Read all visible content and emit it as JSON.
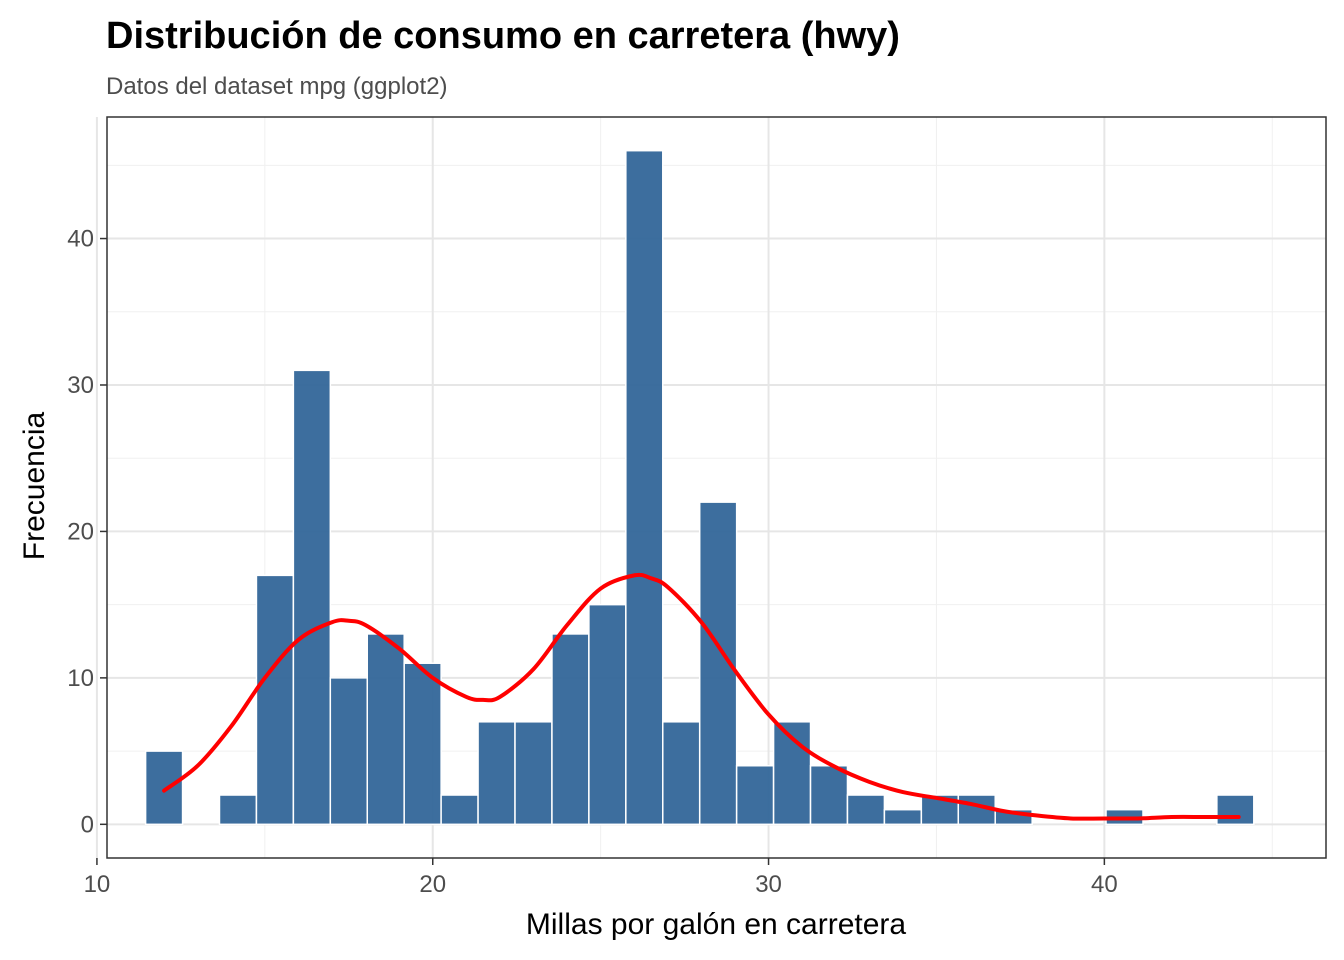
{
  "chart_data": {
    "type": "bar",
    "title": "Distribución de consumo en carretera (hwy)",
    "subtitle": "Datos del dataset mpg (ggplot2)",
    "xlabel": "Millas por galón en carretera",
    "ylabel": "Frecuencia",
    "xlim": [
      10.3,
      46.6
    ],
    "ylim": [
      -2.3,
      48.3
    ],
    "x_ticks": [
      10,
      20,
      30,
      40
    ],
    "y_ticks": [
      0,
      10,
      20,
      30,
      40
    ],
    "x_tick_labels": [
      "10",
      "20",
      "30",
      "40"
    ],
    "y_tick_labels": [
      "0",
      "10",
      "20",
      "30",
      "40"
    ],
    "grid": true,
    "bin_width": 1.1,
    "bins": [
      {
        "x": 12.0,
        "count": 5
      },
      {
        "x": 13.1,
        "count": 0
      },
      {
        "x": 14.2,
        "count": 2
      },
      {
        "x": 15.3,
        "count": 17
      },
      {
        "x": 16.4,
        "count": 31
      },
      {
        "x": 17.5,
        "count": 10
      },
      {
        "x": 18.6,
        "count": 13
      },
      {
        "x": 19.7,
        "count": 11
      },
      {
        "x": 20.8,
        "count": 2
      },
      {
        "x": 21.9,
        "count": 7
      },
      {
        "x": 23.0,
        "count": 7
      },
      {
        "x": 24.1,
        "count": 13
      },
      {
        "x": 25.2,
        "count": 15
      },
      {
        "x": 26.3,
        "count": 46
      },
      {
        "x": 27.4,
        "count": 7
      },
      {
        "x": 28.5,
        "count": 22
      },
      {
        "x": 29.6,
        "count": 4
      },
      {
        "x": 30.7,
        "count": 7
      },
      {
        "x": 31.8,
        "count": 4
      },
      {
        "x": 32.9,
        "count": 2
      },
      {
        "x": 34.0,
        "count": 1
      },
      {
        "x": 35.1,
        "count": 2
      },
      {
        "x": 36.2,
        "count": 2
      },
      {
        "x": 37.3,
        "count": 1
      },
      {
        "x": 38.4,
        "count": 0
      },
      {
        "x": 39.5,
        "count": 0
      },
      {
        "x": 40.6,
        "count": 1
      },
      {
        "x": 41.7,
        "count": 0
      },
      {
        "x": 42.8,
        "count": 0
      },
      {
        "x": 43.9,
        "count": 2
      }
    ],
    "density_curve": {
      "color": "#ff0000",
      "x": [
        12,
        13,
        14,
        15,
        16,
        17,
        17.5,
        18,
        19,
        20,
        21,
        21.5,
        22,
        23,
        24,
        25,
        26,
        26.5,
        27,
        28,
        29,
        30,
        31,
        32,
        33,
        34,
        35,
        36,
        37,
        38,
        39,
        40,
        41,
        42,
        43,
        44
      ],
      "y": [
        2.3,
        4.0,
        6.7,
        10.0,
        12.6,
        13.8,
        13.9,
        13.6,
        12.0,
        10.0,
        8.7,
        8.5,
        8.7,
        10.6,
        13.6,
        16.1,
        17.0,
        16.8,
        16.2,
        13.8,
        10.5,
        7.5,
        5.3,
        3.9,
        2.9,
        2.2,
        1.8,
        1.4,
        0.9,
        0.6,
        0.4,
        0.4,
        0.4,
        0.5,
        0.5,
        0.5
      ]
    },
    "bar_fill": "#336699",
    "bar_stroke": "#ffffff"
  }
}
